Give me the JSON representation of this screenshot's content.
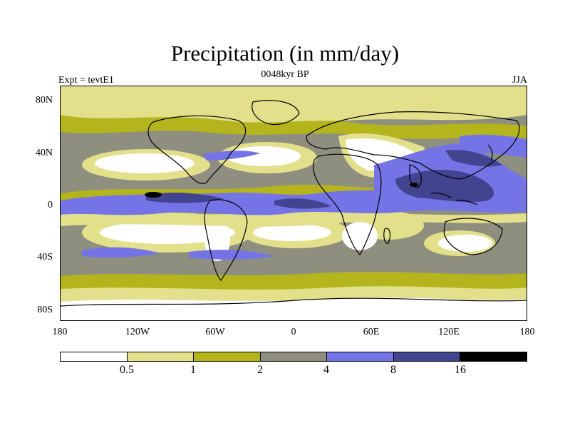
{
  "title": "Precipitation (in mm/day)",
  "subtitle": "0048kyr BP",
  "left_label": "Expt = tevtE1",
  "right_label": "JJA",
  "lat_labels": [
    "80N",
    "40N",
    "0",
    "40S",
    "80S"
  ],
  "lon_labels": [
    "180",
    "120W",
    "60W",
    "0",
    "60E",
    "120E",
    "180"
  ],
  "colorbar": {
    "colors": [
      "#ffffff",
      "#e3e08c",
      "#b4b51c",
      "#8f8f80",
      "#7474e6",
      "#43448f",
      "#000000"
    ],
    "labels": [
      "0.5",
      "1",
      "2",
      "4",
      "8",
      "16"
    ]
  },
  "palette": {
    "dry": "#ffffff",
    "low": "#e3e08c",
    "mid": "#b4b51c",
    "grey": "#8f8f80",
    "blue": "#7474e6",
    "darkblue": "#43448f",
    "black": "#000000"
  }
}
